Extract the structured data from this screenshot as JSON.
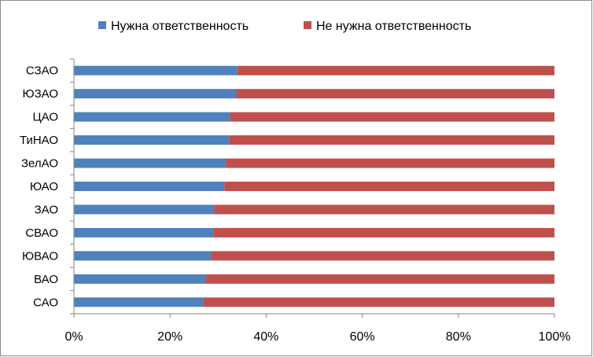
{
  "chart_data": {
    "type": "bar",
    "orientation": "horizontal",
    "stacked": "percent",
    "title": "",
    "xlabel": "",
    "ylabel": "",
    "categories": [
      "САО",
      "ВАО",
      "ЮВАО",
      "СВАО",
      "ЗАО",
      "ЮАО",
      "ЗелАО",
      "ТиНАО",
      "ЦАО",
      "ЮЗАО",
      "СЗАО"
    ],
    "series": [
      {
        "name": "Нужна ответственность",
        "color": "#4f81bd",
        "values": [
          27,
          27.5,
          28.5,
          29,
          29.2,
          31.3,
          31.6,
          32.3,
          32.5,
          33.8,
          34
        ]
      },
      {
        "name": "Не нужна ответственность",
        "color": "#c0504d",
        "values": [
          73,
          72.5,
          71.5,
          71,
          70.8,
          68.7,
          68.4,
          67.7,
          67.5,
          66.2,
          66
        ]
      }
    ],
    "xticks": [
      "0%",
      "20%",
      "40%",
      "60%",
      "80%",
      "100%"
    ],
    "xlim": [
      0,
      100
    ],
    "grid": false,
    "legend": "top"
  }
}
